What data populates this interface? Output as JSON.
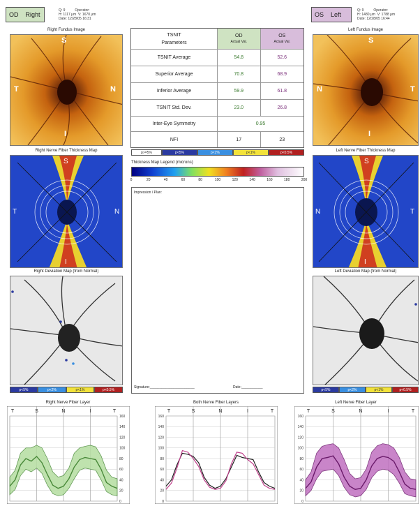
{
  "header": {
    "od_tag": {
      "eye": "OD",
      "side": "Right"
    },
    "os_tag": {
      "eye": "OS",
      "side": "Left"
    },
    "od_info": "Q: 9          Operator:\nH: 1117 μm  V: 1670 μm\nDate: 12/28/05 16:31",
    "os_info": "Q: 9          Operator:\nH: 1480 μm  V: 1788 μm\nDate: 12/28/05 16:44"
  },
  "captions": {
    "right_fundus": "Right Fundus Image",
    "left_fundus": "Left Fundus Image",
    "right_nfl_map": "Right Nerve Fiber Thickness Map",
    "left_nfl_map": "Left Nerve Fiber Thickness Map",
    "right_dev_map": "Right Deviation Map (from Normal)",
    "left_dev_map": "Left Deviation Map (from Normal)"
  },
  "fundus_letters": {
    "s": "S",
    "t": "T",
    "n": "N",
    "i": "I"
  },
  "table": {
    "header_param": "TSNIT",
    "header_param2": "Parameters",
    "header_od": "OD",
    "header_os": "OS",
    "sub_label": "Actual Val.",
    "rows": [
      {
        "label": "TSNIT Average",
        "od": "54.8",
        "os": "52.6"
      },
      {
        "label": "Superior Average",
        "od": "70.8",
        "os": "68.9"
      },
      {
        "label": "Inferior Average",
        "od": "59.9",
        "os": "61.8"
      },
      {
        "label": "TSNIT Std. Dev.",
        "od": "23.0",
        "os": "26.8"
      }
    ],
    "symmetry_label": "Inter-Eye Symmetry",
    "symmetry_value": "0.95",
    "nfi_label": "NFI",
    "nfi_od": "17",
    "nfi_os": "23"
  },
  "sig_legend": [
    "p>=5%",
    "p<5%",
    "p<2%",
    "p<1%",
    "p<0.5%"
  ],
  "sig_legend_short": [
    "p<5%",
    "p<2%",
    "p<1%",
    "p<0.5%"
  ],
  "colors": {
    "od_green": "#cfe3c2",
    "os_purple": "#d8bddb",
    "p5": "#2b3aa0",
    "p2": "#3a8fe0",
    "p1": "#f2e23a",
    "p05": "#b02020"
  },
  "thickness": {
    "title": "Thickness Map Legend (microns)",
    "ticks": [
      "0",
      "20",
      "40",
      "60",
      "80",
      "100",
      "120",
      "140",
      "160",
      "180",
      "200"
    ]
  },
  "notes": {
    "impression": "Impression / Plan:",
    "signature": "Signature:_______________________",
    "date": "Date:___________"
  },
  "chart_data": [
    {
      "type": "area",
      "title": "Right Nerve Fiber Layer",
      "x_sections": [
        "T",
        "S",
        "N",
        "I",
        "T"
      ],
      "ylim": [
        0,
        160
      ],
      "yticks": [
        0,
        20,
        40,
        60,
        80,
        100,
        120,
        140,
        160
      ],
      "grid": true,
      "x": [
        0,
        8,
        16,
        24,
        32,
        40,
        48,
        56,
        64,
        72,
        80,
        88,
        96,
        104,
        112,
        120,
        128,
        136,
        144,
        152,
        160
      ],
      "series": [
        {
          "values": [
            28,
            40,
            68,
            80,
            75,
            84,
            72,
            50,
            30,
            24,
            28,
            42,
            64,
            78,
            82,
            80,
            78,
            60,
            35,
            28,
            24
          ]
        },
        {
          "values": [
            45,
            58,
            90,
            100,
            100,
            105,
            100,
            80,
            55,
            45,
            48,
            62,
            90,
            100,
            103,
            105,
            102,
            85,
            58,
            45,
            42
          ]
        },
        {
          "values": [
            12,
            22,
            48,
            60,
            55,
            62,
            52,
            30,
            14,
            10,
            12,
            24,
            42,
            58,
            62,
            60,
            58,
            40,
            18,
            12,
            10
          ]
        }
      ]
    },
    {
      "type": "line",
      "title": "Both Nerve Fiber Layers",
      "x_sections": [
        "T",
        "S",
        "N",
        "I",
        "T"
      ],
      "ylim": [
        0,
        160
      ],
      "yticks": [
        0,
        20,
        40,
        60,
        80,
        100,
        120,
        140,
        160
      ],
      "grid": true,
      "x": [
        0,
        8,
        16,
        24,
        32,
        40,
        48,
        56,
        64,
        72,
        80,
        88,
        96,
        104,
        112,
        120,
        128,
        136,
        144,
        152,
        160
      ],
      "series": [
        {
          "color": "#222222",
          "values": [
            28,
            40,
            68,
            90,
            88,
            84,
            72,
            45,
            30,
            24,
            28,
            42,
            64,
            86,
            82,
            80,
            78,
            55,
            35,
            28,
            24
          ]
        },
        {
          "color": "#c0408c",
          "values": [
            22,
            34,
            62,
            95,
            92,
            80,
            65,
            40,
            26,
            22,
            24,
            38,
            70,
            92,
            90,
            78,
            70,
            50,
            30,
            24,
            22
          ]
        }
      ]
    },
    {
      "type": "area",
      "title": "Left Nerve Fiber Layer",
      "x_sections": [
        "T",
        "S",
        "N",
        "I",
        "T"
      ],
      "ylim": [
        0,
        160
      ],
      "yticks": [
        0,
        20,
        40,
        60,
        80,
        100,
        120,
        140,
        160
      ],
      "grid": true,
      "x": [
        0,
        8,
        16,
        24,
        32,
        40,
        48,
        56,
        64,
        72,
        80,
        88,
        96,
        104,
        112,
        120,
        128,
        136,
        144,
        152,
        160
      ],
      "series": [
        {
          "values": [
            24,
            36,
            64,
            80,
            82,
            85,
            70,
            45,
            28,
            22,
            24,
            40,
            66,
            80,
            84,
            82,
            75,
            55,
            32,
            24,
            22
          ]
        },
        {
          "values": [
            40,
            55,
            90,
            103,
            106,
            108,
            100,
            78,
            52,
            42,
            44,
            60,
            92,
            104,
            108,
            106,
            100,
            82,
            55,
            42,
            40
          ]
        },
        {
          "values": [
            10,
            20,
            42,
            56,
            58,
            60,
            48,
            26,
            12,
            8,
            10,
            22,
            44,
            56,
            60,
            58,
            50,
            34,
            14,
            10,
            8
          ]
        }
      ]
    }
  ]
}
